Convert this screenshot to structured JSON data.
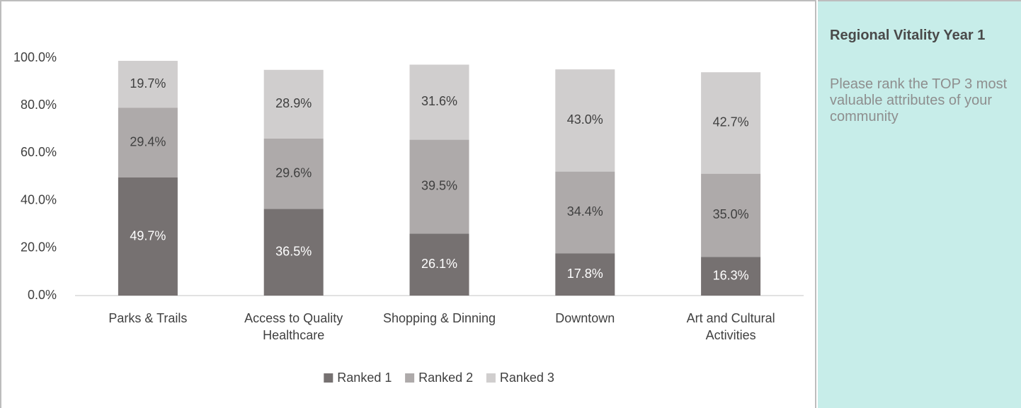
{
  "chart_data": {
    "type": "stacked_bar",
    "categories": [
      "Parks & Trails",
      "Access to Quality Healthcare",
      "Shopping & Dinning",
      "Downtown",
      "Art and Cultural Activities"
    ],
    "series": [
      {
        "name": "Ranked 1",
        "color": "#767171",
        "label_color": "#ffffff",
        "values": [
          49.7,
          36.5,
          26.1,
          17.8,
          16.3
        ],
        "value_labels": [
          "49.7%",
          "36.5%",
          "26.1%",
          "17.8%",
          "16.3%"
        ]
      },
      {
        "name": "Ranked 2",
        "color": "#aeaaaa",
        "label_color": "#404040",
        "values": [
          29.4,
          29.6,
          39.5,
          34.4,
          35.0
        ],
        "value_labels": [
          "29.4%",
          "29.6%",
          "39.5%",
          "34.4%",
          "35.0%"
        ]
      },
      {
        "name": "Ranked 3",
        "color": "#d0cece",
        "label_color": "#404040",
        "values": [
          19.7,
          28.9,
          31.6,
          43.0,
          42.7
        ],
        "value_labels": [
          "19.7%",
          "28.9%",
          "31.6%",
          "43.0%",
          "42.7%"
        ]
      }
    ],
    "ylim": [
      0,
      100
    ],
    "yticks": [
      {
        "value": 0,
        "label": "0.0%"
      },
      {
        "value": 20,
        "label": "20.0%"
      },
      {
        "value": 40,
        "label": "40.0%"
      },
      {
        "value": 60,
        "label": "60.0%"
      },
      {
        "value": 80,
        "label": "80.0%"
      },
      {
        "value": 100,
        "label": "100.0%"
      }
    ],
    "grid": false,
    "legend": "bottom"
  },
  "panel": {
    "title": "Regional Vitality Year 1",
    "text": "Please rank the TOP 3 most valuable attributes of your community"
  }
}
